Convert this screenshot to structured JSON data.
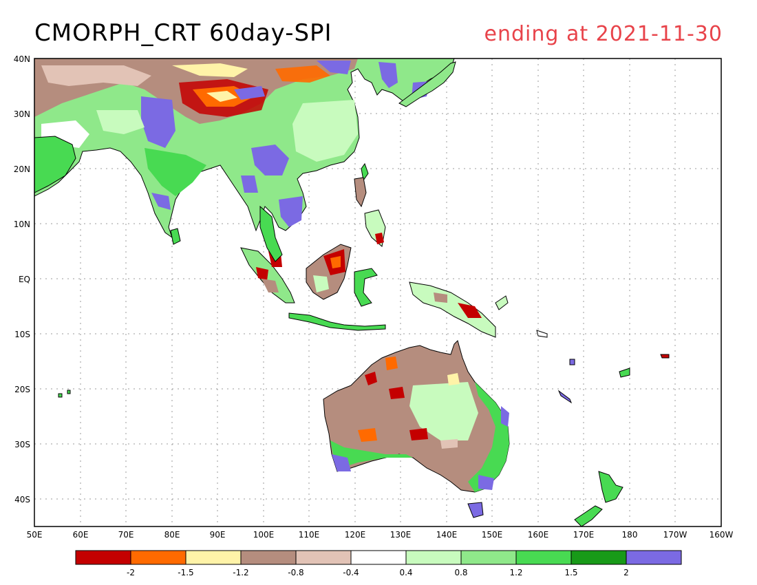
{
  "title": "CMORPH_CRT 60day-SPI",
  "subtitle": "ending at 2021-11-30",
  "lat_labels": [
    "40N",
    "30N",
    "20N",
    "10N",
    "EQ",
    "10S",
    "20S",
    "30S",
    "40S"
  ],
  "lon_labels": [
    "50E",
    "60E",
    "70E",
    "80E",
    "90E",
    "100E",
    "110E",
    "120E",
    "130E",
    "140E",
    "150E",
    "160E",
    "170E",
    "180",
    "170W",
    "160W"
  ],
  "legend": {
    "colors": [
      "#c40000",
      "#ff6a00",
      "#fff3a8",
      "#b58d7e",
      "#e2c3b6",
      "#ffffff",
      "#c8fbbe",
      "#8fe88a",
      "#48da52",
      "#189a18",
      "#7b6ae3"
    ],
    "labels": [
      "-2",
      "-1.5",
      "-1.2",
      "-0.8",
      "-0.4",
      "0.4",
      "0.8",
      "1.2",
      "1.5",
      "2"
    ]
  }
}
